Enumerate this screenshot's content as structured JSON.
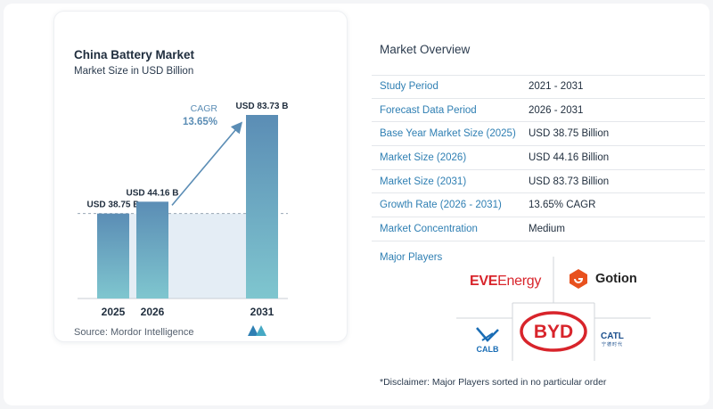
{
  "chart_data": {
    "type": "bar",
    "title": "China Battery Market",
    "subtitle": "Market Size in USD Billion",
    "categories": [
      "2025",
      "2026",
      "2031"
    ],
    "values": [
      38.75,
      44.16,
      83.73
    ],
    "value_labels": [
      "USD 38.75 B",
      "USD 44.16 B",
      "USD 83.73 B"
    ],
    "ylim": [
      0,
      83.73
    ],
    "grid": false,
    "annotation": {
      "label": "CAGR",
      "value": "13.65%"
    },
    "bar_color_top": "#5b8db5",
    "bar_color_bottom": "#7fc6cf"
  },
  "source": "Source:  Mordor Intelligence",
  "overview": {
    "title": "Market Overview",
    "rows": [
      {
        "label": "Study Period",
        "value": "2021 - 2031"
      },
      {
        "label": "Forecast Data Period",
        "value": "2026 - 2031"
      },
      {
        "label": "Base Year Market Size (2025)",
        "value": "USD 38.75 Billion"
      },
      {
        "label": "Market Size (2026)",
        "value": "USD 44.16 Billion"
      },
      {
        "label": "Market Size (2031)",
        "value": "USD 83.73 Billion"
      },
      {
        "label": "Growth Rate (2026 - 2031)",
        "value": "13.65% CAGR"
      },
      {
        "label": "Market Concentration",
        "value": "Medium"
      }
    ]
  },
  "players": {
    "title": "Major Players",
    "eve_a": "EVE",
    "eve_b": "Energy",
    "gotion": "Gotion",
    "byd": "BYD",
    "calb": "CALB",
    "catl": "CATL",
    "catl_sub": "宁德时代"
  },
  "disclaimer": "*Disclaimer: Major Players sorted in no particular order",
  "colors": {
    "accent": "#2f7fb3",
    "arrow": "#5b8db5"
  }
}
